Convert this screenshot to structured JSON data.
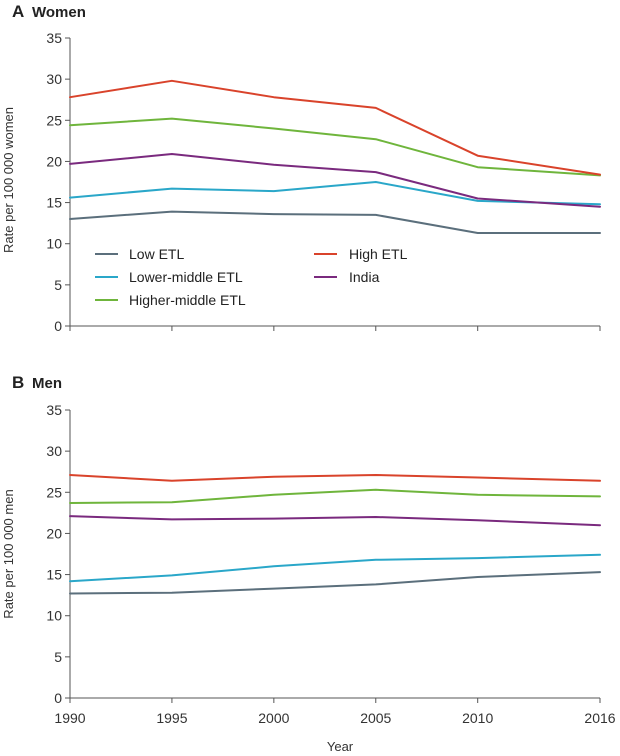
{
  "figure": {
    "x_axis_title": "Year"
  },
  "chart_data": [
    {
      "type": "line",
      "panel_letter": "A",
      "title": "Women",
      "ylabel": "Rate per 100 000 women",
      "xlabel": "Year",
      "x": [
        1990,
        1995,
        2000,
        2005,
        2010,
        2016
      ],
      "x_tick_labels": [
        "1990",
        "1995",
        "2000",
        "2005",
        "2010",
        "2016"
      ],
      "ylim": [
        0,
        35
      ],
      "y_ticks": [
        0,
        5,
        10,
        15,
        20,
        25,
        30,
        35
      ],
      "legend": [
        "Low ETL",
        "Lower-middle ETL",
        "Higher-middle ETL",
        "High ETL",
        "India"
      ],
      "series": [
        {
          "name": "Low ETL",
          "color": "#5b6f7c",
          "values": [
            13.0,
            13.9,
            13.6,
            13.5,
            11.3,
            11.3
          ]
        },
        {
          "name": "Lower-middle ETL",
          "color": "#2aa7c9",
          "values": [
            15.6,
            16.7,
            16.4,
            17.5,
            15.2,
            14.8
          ]
        },
        {
          "name": "Higher-middle ETL",
          "color": "#6fb53c",
          "values": [
            24.4,
            25.2,
            24.0,
            22.7,
            19.3,
            18.3
          ]
        },
        {
          "name": "High ETL",
          "color": "#d9432b",
          "values": [
            27.8,
            29.8,
            27.8,
            26.5,
            20.7,
            18.4
          ]
        },
        {
          "name": "India",
          "color": "#7a2a7e",
          "values": [
            19.7,
            20.9,
            19.6,
            18.7,
            15.5,
            14.5
          ]
        }
      ]
    },
    {
      "type": "line",
      "panel_letter": "B",
      "title": "Men",
      "ylabel": "Rate per 100 000 men",
      "xlabel": "Year",
      "x": [
        1990,
        1995,
        2000,
        2005,
        2010,
        2016
      ],
      "x_tick_labels": [
        "1990",
        "1995",
        "2000",
        "2005",
        "2010",
        "2016"
      ],
      "ylim": [
        0,
        35
      ],
      "y_ticks": [
        0,
        5,
        10,
        15,
        20,
        25,
        30,
        35
      ],
      "series": [
        {
          "name": "Low ETL",
          "color": "#5b6f7c",
          "values": [
            12.7,
            12.8,
            13.3,
            13.8,
            14.7,
            15.3
          ]
        },
        {
          "name": "Lower-middle ETL",
          "color": "#2aa7c9",
          "values": [
            14.2,
            14.9,
            16.0,
            16.8,
            17.0,
            17.4
          ]
        },
        {
          "name": "Higher-middle ETL",
          "color": "#6fb53c",
          "values": [
            23.7,
            23.8,
            24.7,
            25.3,
            24.7,
            24.5
          ]
        },
        {
          "name": "High ETL",
          "color": "#d9432b",
          "values": [
            27.1,
            26.4,
            26.9,
            27.1,
            26.8,
            26.4
          ]
        },
        {
          "name": "India",
          "color": "#7a2a7e",
          "values": [
            22.1,
            21.7,
            21.8,
            22.0,
            21.6,
            21.0
          ]
        }
      ]
    }
  ]
}
